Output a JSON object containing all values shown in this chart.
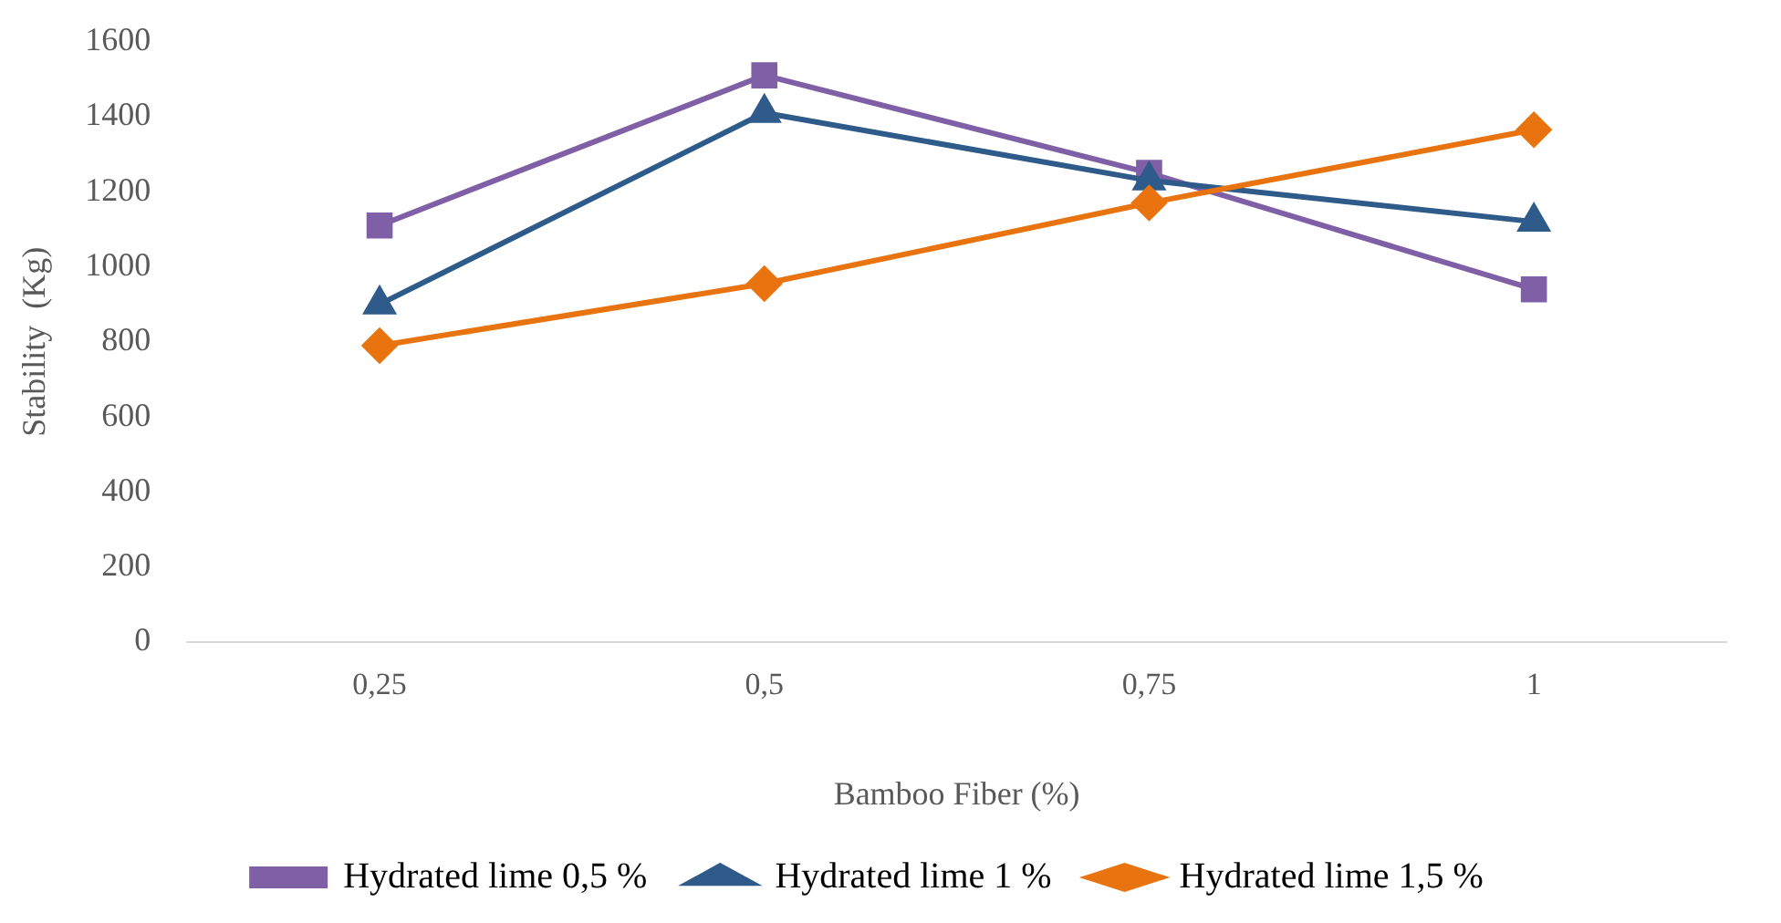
{
  "chart_data": {
    "type": "line",
    "xlabel": "Bamboo Fiber (%)",
    "ylabel": "Stability  (Kg)",
    "categories": [
      "0,25",
      "0,5",
      "0,75",
      "1"
    ],
    "ylim": [
      0,
      1600
    ],
    "yticks": [
      0,
      200,
      400,
      600,
      800,
      1000,
      1200,
      1400,
      1600
    ],
    "grid": false,
    "legend": "bottom",
    "series": [
      {
        "name": "Hydrated lime 0,5 %",
        "color": "#7f5fa6",
        "marker": "square",
        "values": [
          1110,
          1510,
          1250,
          940
        ]
      },
      {
        "name": "Hydrated lime 1 %",
        "color": "#2e5b8a",
        "marker": "triangle",
        "values": [
          900,
          1410,
          1230,
          1120
        ]
      },
      {
        "name": "Hydrated lime 1,5 %",
        "color": "#e8730f",
        "marker": "diamond",
        "values": [
          790,
          955,
          1170,
          1365
        ]
      }
    ]
  }
}
